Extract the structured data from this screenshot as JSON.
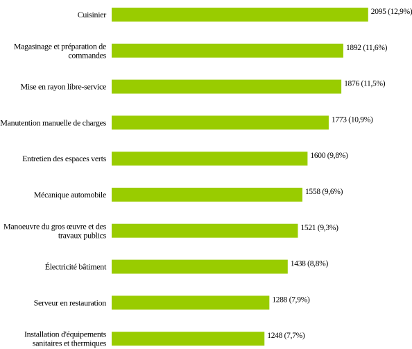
{
  "chart_data": {
    "type": "bar",
    "orientation": "horizontal",
    "categories": [
      [
        "Cuisinier"
      ],
      [
        "Magasinage et préparation de",
        "commandes"
      ],
      [
        "Mise en rayon libre-service"
      ],
      [
        "Manutention manuelle de charges"
      ],
      [
        "Entretien des espaces verts"
      ],
      [
        "Mécanique automobile"
      ],
      [
        "Manoeuvre du gros œuvre et des",
        "travaux publics"
      ],
      [
        "Électricité bâtiment"
      ],
      [
        "Serveur en restauration"
      ],
      [
        "Installation d'équipements",
        "sanitaires et thermiques"
      ]
    ],
    "values": [
      2095,
      1892,
      1876,
      1773,
      1600,
      1558,
      1521,
      1438,
      1288,
      1248
    ],
    "value_labels": [
      "2095 (12,9%)",
      "1892 (11,6%)",
      "1876 (11,5%)",
      "1773 (10,9%)",
      "1600 (9,8%)",
      "1558 (9,6%)",
      "1521 (9,3%)",
      "1438 (8,8%)",
      "1288 (7,9%)",
      "1248 (7,7%)"
    ],
    "title": "",
    "xlabel": "",
    "ylabel": "",
    "xlim": [
      0,
      2200
    ],
    "grid": false,
    "legend": "none",
    "bar_color": "#99cc00"
  }
}
